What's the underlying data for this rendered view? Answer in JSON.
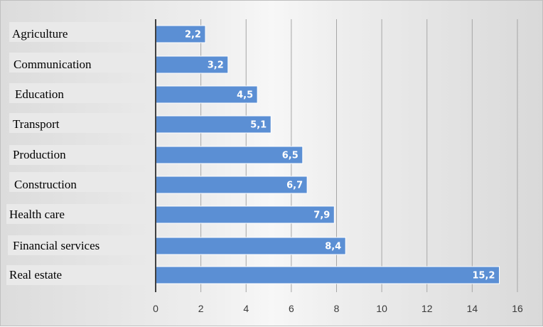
{
  "chart_data": {
    "type": "bar",
    "orientation": "horizontal",
    "categories": [
      "Agriculture",
      "Communication",
      "Education",
      "Transport",
      "Production",
      "Construction",
      "Health care",
      "Financial services",
      "Real estate"
    ],
    "values": [
      2.2,
      3.2,
      4.5,
      5.1,
      6.5,
      6.7,
      7.9,
      8.4,
      15.2
    ],
    "value_labels": [
      "2,2",
      "3,2",
      "4,5",
      "5,1",
      "6,5",
      "6,7",
      "7,9",
      "8,4",
      "15,2"
    ],
    "xlim": [
      0,
      16
    ],
    "x_ticks": [
      0,
      2,
      4,
      6,
      8,
      10,
      12,
      14,
      16
    ],
    "grid": "vertical",
    "legend": "none",
    "colors": {
      "bar": "#5b8fd4",
      "bar_edge": "#ffffff",
      "grid": "#a6a6a6",
      "axis": "#404040",
      "label_box": "#e9e9e9"
    }
  }
}
